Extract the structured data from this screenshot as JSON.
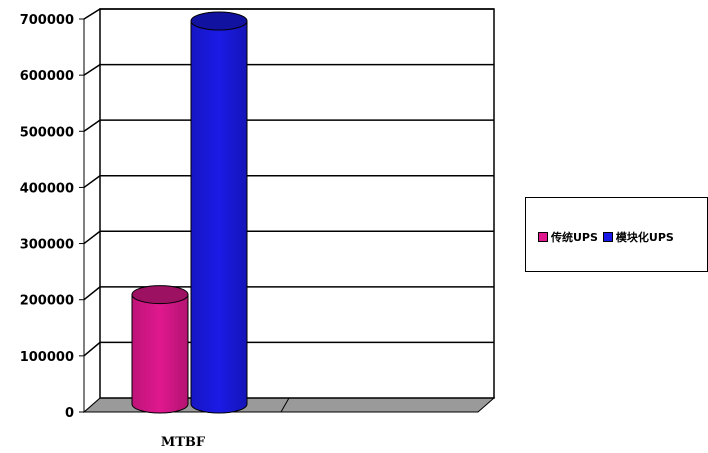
{
  "chart_data": {
    "type": "bar",
    "categories": [
      "MTBF"
    ],
    "series": [
      {
        "name": "传统UPS",
        "values": [
          200000
        ],
        "color": "#e0188e"
      },
      {
        "name": "模块化UPS",
        "values": [
          700000
        ],
        "color": "#1a1ae6"
      }
    ],
    "yticks": [
      "0",
      "100000",
      "200000",
      "300000",
      "400000",
      "500000",
      "600000",
      "700000"
    ],
    "ylim": [
      0,
      700000
    ],
    "grid": true,
    "legend_position": "right",
    "style": "3d-cylinder"
  }
}
